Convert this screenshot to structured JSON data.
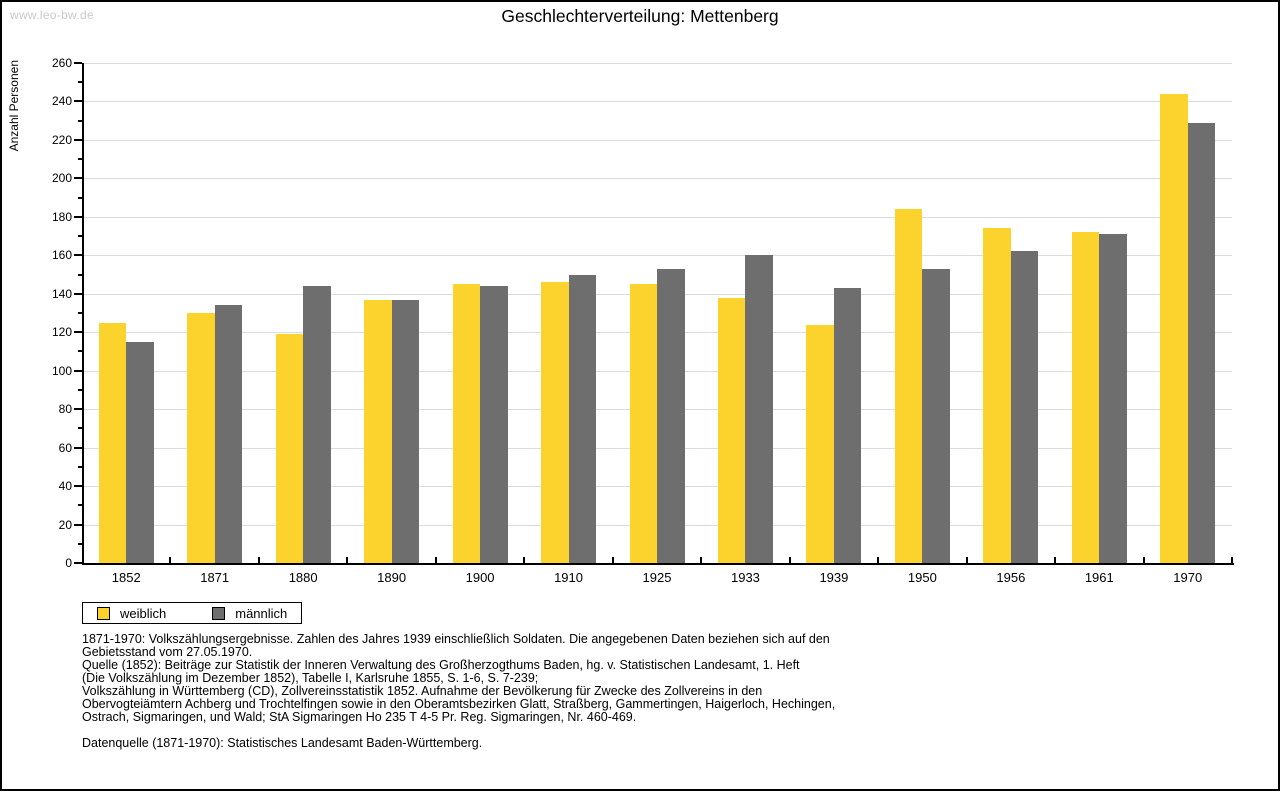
{
  "watermark": "www.leo-bw.de",
  "title": "Geschlechterverteilung: Mettenberg",
  "chart_data": {
    "type": "bar",
    "title": "Geschlechterverteilung: Mettenberg",
    "xlabel": "",
    "ylabel": "Anzahl Personen",
    "ylim": [
      0,
      260
    ],
    "ytick_step": 20,
    "ytick_minor_step": 10,
    "grid": true,
    "legend_position": "bottom-left",
    "categories": [
      "1852",
      "1871",
      "1880",
      "1890",
      "1900",
      "1910",
      "1925",
      "1933",
      "1939",
      "1950",
      "1956",
      "1961",
      "1970"
    ],
    "series": [
      {
        "name": "weiblich",
        "color": "#FCD22C",
        "values": [
          125,
          130,
          119,
          137,
          145,
          146,
          145,
          138,
          124,
          184,
          174,
          172,
          244
        ]
      },
      {
        "name": "männlich",
        "color": "#6E6E6E",
        "values": [
          115,
          134,
          144,
          137,
          144,
          150,
          153,
          160,
          143,
          153,
          162,
          171,
          229
        ]
      }
    ]
  },
  "footer": {
    "lines": [
      "1871-1970: Volkszählungsergebnisse. Zahlen des Jahres 1939 einschließlich Soldaten. Die angegebenen Daten beziehen sich auf den",
      "Gebietsstand vom 27.05.1970.",
      "Quelle (1852): Beiträge zur Statistik der Inneren Verwaltung des Großherzogthums Baden, hg. v. Statistischen Landesamt, 1. Heft",
      "(Die Volkszählung im Dezember 1852), Tabelle I, Karlsruhe 1855, S. 1-6, S. 7-239;",
      "Volkszählung in Württemberg (CD), Zollvereinsstatistik 1852. Aufnahme der Bevölkerung für Zwecke des Zollvereins in den",
      "Obervogteiämtern Achberg und Trochtelfingen sowie in den Oberamtsbezirken Glatt, Straßberg, Gammertingen, Haigerloch, Hechingen,",
      "Ostrach, Sigmaringen, und Wald; StA Sigmaringen Ho 235 T 4-5 Pr. Reg. Sigmaringen, Nr. 460-469."
    ],
    "datenquelle": "Datenquelle (1871-1970): Statistisches Landesamt Baden-Württemberg."
  },
  "colors": {
    "weiblich": "#FCD22C",
    "männlich": "#6E6E6E",
    "gridline": "#DCDCDC",
    "axis": "#000000",
    "watermark": "#C9C9C9",
    "background": "#FFFFFF"
  }
}
